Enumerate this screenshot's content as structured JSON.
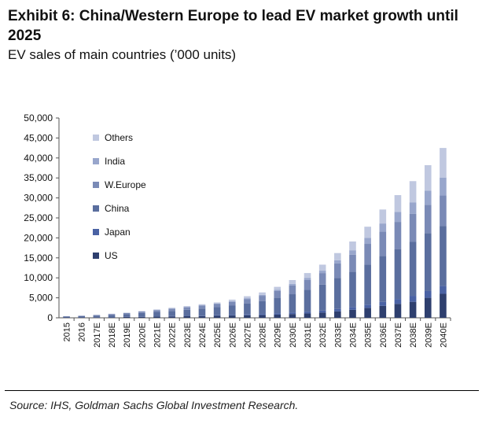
{
  "header": {
    "title": "Exhibit 6: China/Western Europe to lead EV market growth until 2025",
    "subtitle": "EV sales of main countries (’000 units)"
  },
  "footer": {
    "source": "Source: IHS, Goldman Sachs Global Investment Research."
  },
  "chart_data": {
    "type": "bar",
    "stacked": true,
    "title": "Exhibit 6: China/Western Europe to lead EV market growth until 2025",
    "subtitle": "EV sales of main countries (’000 units)",
    "xlabel": "",
    "ylabel": "",
    "ylim": [
      0,
      50000
    ],
    "yticks": [
      0,
      5000,
      10000,
      15000,
      20000,
      25000,
      30000,
      35000,
      40000,
      45000,
      50000
    ],
    "ytick_labels": [
      "0",
      "5,000",
      "10,000",
      "15,000",
      "20,000",
      "25,000",
      "30,000",
      "35,000",
      "40,000",
      "45,000",
      "50,000"
    ],
    "grid": false,
    "legend_position": "top-left",
    "categories": [
      "2015",
      "2016",
      "2017E",
      "2018E",
      "2019E",
      "2020E",
      "2021E",
      "2022E",
      "2023E",
      "2024E",
      "2025E",
      "2026E",
      "2027E",
      "2028E",
      "2029E",
      "2030E",
      "2031E",
      "2032E",
      "2033E",
      "2034E",
      "2035E",
      "2036E",
      "2037E",
      "2038E",
      "2039E",
      "2040E"
    ],
    "series": [
      {
        "name": "US",
        "color": "#2e3f6e",
        "values": [
          80,
          100,
          120,
          160,
          200,
          250,
          300,
          350,
          400,
          450,
          500,
          580,
          650,
          700,
          800,
          950,
          1100,
          1300,
          1600,
          2000,
          2500,
          3000,
          3500,
          4000,
          5000,
          6000
        ]
      },
      {
        "name": "Japan",
        "color": "#4a62a4",
        "values": [
          20,
          20,
          30,
          40,
          50,
          60,
          70,
          80,
          100,
          100,
          150,
          170,
          200,
          250,
          300,
          350,
          400,
          500,
          600,
          700,
          800,
          1000,
          1200,
          1500,
          1700,
          2000
        ]
      },
      {
        "name": "China",
        "color": "#5a6e9e",
        "values": [
          200,
          300,
          400,
          550,
          700,
          900,
          1100,
          1300,
          1500,
          1750,
          2000,
          2300,
          2700,
          3200,
          3900,
          4600,
          5500,
          6500,
          7800,
          8800,
          10000,
          11500,
          12500,
          13500,
          14500,
          15000
        ]
      },
      {
        "name": "W.Europe",
        "color": "#7a8ab6",
        "values": [
          80,
          100,
          150,
          200,
          250,
          350,
          450,
          550,
          650,
          750,
          800,
          950,
          1150,
          1350,
          1700,
          2200,
          2500,
          2900,
          3600,
          4300,
          5200,
          6100,
          6800,
          7000,
          7100,
          7600
        ]
      },
      {
        "name": "India",
        "color": "#98a6cc",
        "values": [
          0,
          0,
          0,
          10,
          10,
          20,
          30,
          40,
          60,
          80,
          100,
          150,
          200,
          250,
          300,
          400,
          500,
          600,
          800,
          1100,
          1500,
          2000,
          2500,
          2900,
          3500,
          4500
        ]
      },
      {
        "name": "Others",
        "color": "#c0c8e0",
        "values": [
          20,
          30,
          50,
          60,
          90,
          120,
          150,
          200,
          230,
          270,
          300,
          400,
          500,
          600,
          750,
          950,
          1200,
          1500,
          1800,
          2200,
          2800,
          3500,
          4200,
          5300,
          6400,
          7400
        ]
      }
    ]
  }
}
